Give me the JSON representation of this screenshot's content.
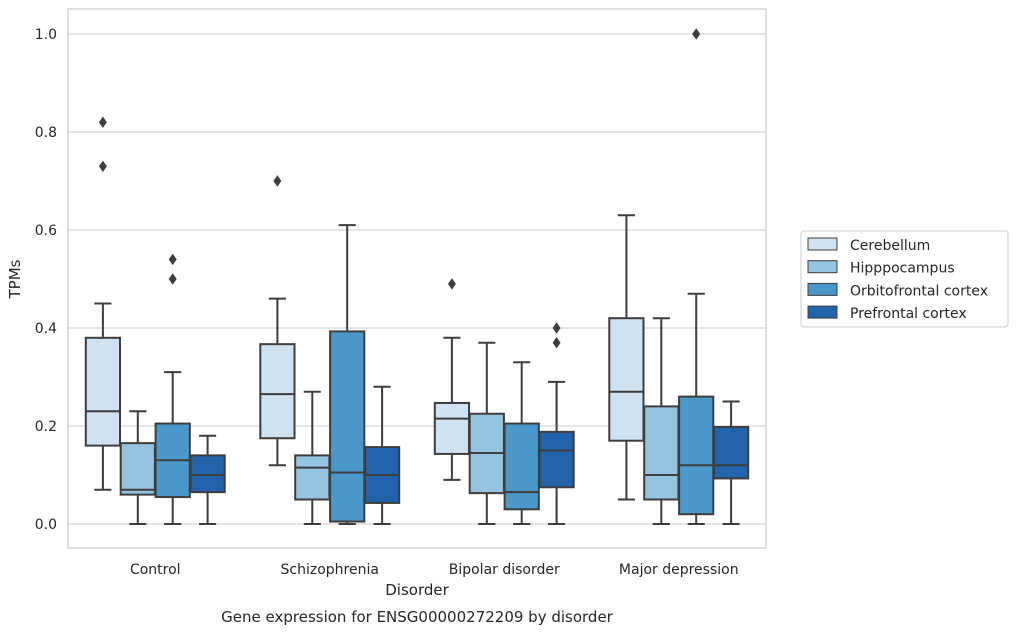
{
  "chart_data": {
    "type": "box",
    "title": "",
    "caption": "Gene expression for ENSG00000272209 by disorder",
    "xlabel": "Disorder",
    "ylabel": "TPMs",
    "ylim": [
      -0.05,
      1.05
    ],
    "yticks": [
      0.0,
      0.2,
      0.4,
      0.6,
      0.8,
      1.0
    ],
    "ytick_labels": [
      "0.0",
      "0.2",
      "0.4",
      "0.6",
      "0.8",
      "1.0"
    ],
    "grid": "horizontal",
    "legend_position": "right",
    "categories": [
      "Control",
      "Schizophrenia",
      "Bipolar disorder",
      "Major depression"
    ],
    "series": [
      {
        "name": "Cerebellum",
        "color": "#d0e1f2",
        "boxes": [
          {
            "whisker_low": 0.07,
            "q1": 0.16,
            "median": 0.23,
            "q3": 0.38,
            "whisker_high": 0.45,
            "outliers": [
              0.73,
              0.82
            ]
          },
          {
            "whisker_low": 0.12,
            "q1": 0.175,
            "median": 0.265,
            "q3": 0.367,
            "whisker_high": 0.46,
            "outliers": [
              0.7
            ]
          },
          {
            "whisker_low": 0.09,
            "q1": 0.143,
            "median": 0.215,
            "q3": 0.247,
            "whisker_high": 0.38,
            "outliers": [
              0.49
            ]
          },
          {
            "whisker_low": 0.05,
            "q1": 0.17,
            "median": 0.27,
            "q3": 0.42,
            "whisker_high": 0.63,
            "outliers": []
          }
        ]
      },
      {
        "name": "Hipppocampus",
        "color": "#94c4df",
        "boxes": [
          {
            "whisker_low": 0.0,
            "q1": 0.06,
            "median": 0.07,
            "q3": 0.165,
            "whisker_high": 0.23,
            "outliers": []
          },
          {
            "whisker_low": 0.0,
            "q1": 0.05,
            "median": 0.115,
            "q3": 0.14,
            "whisker_high": 0.27,
            "outliers": []
          },
          {
            "whisker_low": 0.0,
            "q1": 0.063,
            "median": 0.145,
            "q3": 0.225,
            "whisker_high": 0.37,
            "outliers": []
          },
          {
            "whisker_low": 0.0,
            "q1": 0.05,
            "median": 0.1,
            "q3": 0.24,
            "whisker_high": 0.42,
            "outliers": []
          }
        ]
      },
      {
        "name": "Orbitofrontal cortex",
        "color": "#4a98c9",
        "boxes": [
          {
            "whisker_low": 0.0,
            "q1": 0.055,
            "median": 0.13,
            "q3": 0.205,
            "whisker_high": 0.31,
            "outliers": [
              0.5,
              0.54
            ]
          },
          {
            "whisker_low": 0.0,
            "q1": 0.005,
            "median": 0.105,
            "q3": 0.393,
            "whisker_high": 0.61,
            "outliers": []
          },
          {
            "whisker_low": 0.0,
            "q1": 0.03,
            "median": 0.065,
            "q3": 0.205,
            "whisker_high": 0.33,
            "outliers": []
          },
          {
            "whisker_low": 0.0,
            "q1": 0.02,
            "median": 0.12,
            "q3": 0.26,
            "whisker_high": 0.47,
            "outliers": [
              1.0
            ]
          }
        ]
      },
      {
        "name": "Prefrontal cortex",
        "color": "#2164ab",
        "boxes": [
          {
            "whisker_low": 0.0,
            "q1": 0.065,
            "median": 0.1,
            "q3": 0.14,
            "whisker_high": 0.18,
            "outliers": []
          },
          {
            "whisker_low": 0.0,
            "q1": 0.043,
            "median": 0.1,
            "q3": 0.157,
            "whisker_high": 0.28,
            "outliers": []
          },
          {
            "whisker_low": 0.0,
            "q1": 0.075,
            "median": 0.15,
            "q3": 0.188,
            "whisker_high": 0.29,
            "outliers": [
              0.37,
              0.4
            ]
          },
          {
            "whisker_low": 0.0,
            "q1": 0.093,
            "median": 0.12,
            "q3": 0.198,
            "whisker_high": 0.25,
            "outliers": []
          }
        ]
      }
    ]
  }
}
